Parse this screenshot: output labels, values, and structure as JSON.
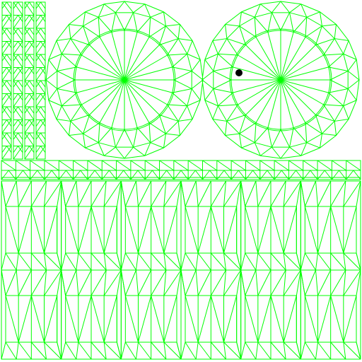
{
  "texture": {
    "background_color": "#ffffff",
    "wire_color": "#00ff00",
    "marker_color": "#000000"
  },
  "strips": {
    "count": 4,
    "segments": 12
  },
  "wheels": {
    "count": 2,
    "spokes": 24,
    "rim_segments": 24
  },
  "band": {
    "columns": 25
  },
  "panels": {
    "columns": 6,
    "rows": 2
  }
}
